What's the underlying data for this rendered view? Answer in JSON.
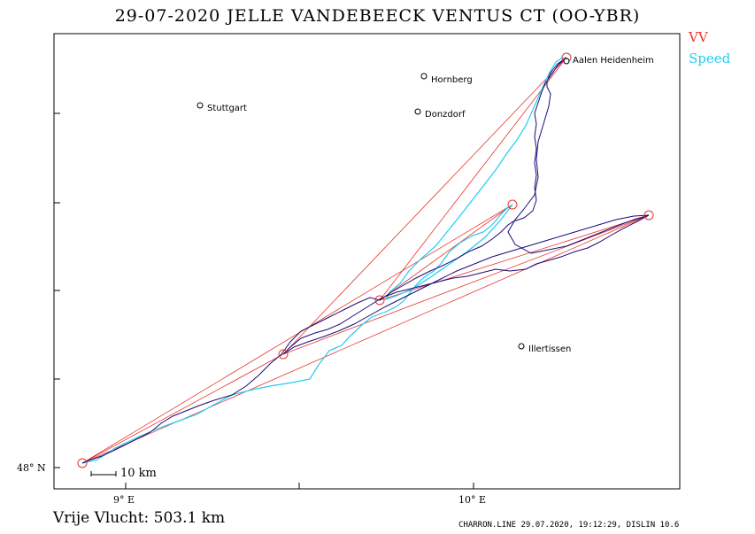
{
  "title": "29-07-2020   JELLE VANDEBEECK   VENTUS CT (OO-YBR)",
  "legend": {
    "vv": "VV",
    "speed": "Speed"
  },
  "axis": {
    "lat_label": "48° N",
    "lon_labels": [
      "9° E",
      "10° E"
    ]
  },
  "scale_bar": {
    "label": "10  km"
  },
  "distance_text": "Vrije Vlucht:  503.1 km",
  "footer": "CHARRON.LINE 29.07.2020, 19:12:29, DISLIN 10.6",
  "colors": {
    "task": "#e8342a",
    "speed_track": "#22ccee",
    "track": "#1e0a78",
    "frame": "#000000"
  },
  "places": [
    {
      "name": "Aalen Heidenheim"
    },
    {
      "name": "Hornberg"
    },
    {
      "name": "Stuttgart"
    },
    {
      "name": "Donzdorf"
    },
    {
      "name": "Illertissen"
    }
  ]
}
